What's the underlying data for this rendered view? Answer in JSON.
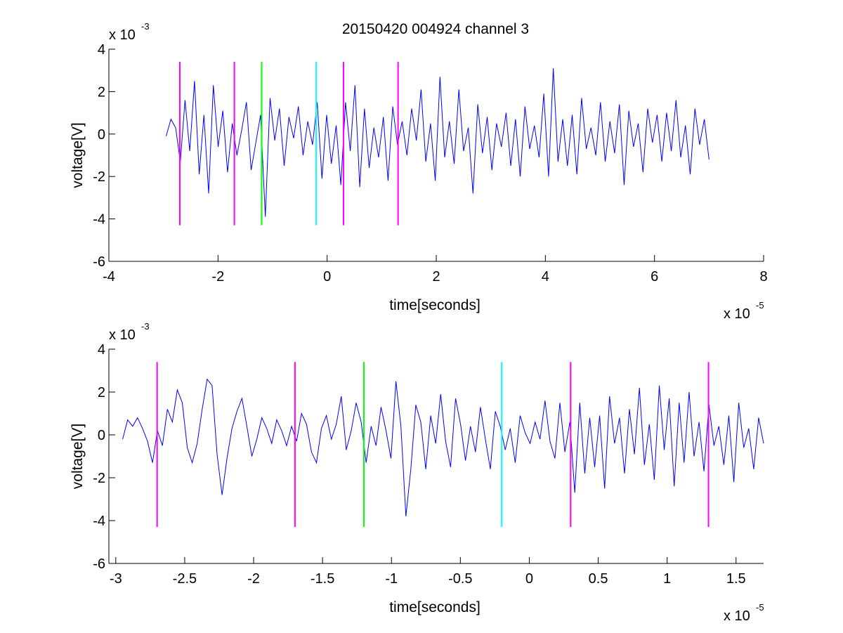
{
  "figure_title": "20150420 004924 channel 3",
  "colors": {
    "signal": "#0000ff",
    "magenta": "#ff00ff",
    "green": "#00ff00",
    "cyan": "#00ffff",
    "axes": "#000000"
  },
  "chart_data": [
    {
      "type": "line",
      "title": "20150420 004924 channel 3",
      "xlabel": "time[seconds]",
      "ylabel": "voltage[V]",
      "x_scale_base": "x 10",
      "x_scale_exp": "-5",
      "y_scale_base": "x 10",
      "y_scale_exp": "-3",
      "xlim": [
        -4,
        8
      ],
      "ylim": [
        -6,
        4
      ],
      "xticks": [
        -4,
        -2,
        0,
        2,
        4,
        6,
        8
      ],
      "xtick_labels": [
        "-4",
        "-2",
        "0",
        "2",
        "4",
        "6",
        "8"
      ],
      "yticks": [
        -6,
        -4,
        -2,
        0,
        2,
        4
      ],
      "ytick_labels": [
        "-6",
        "-4",
        "-2",
        "0",
        "2",
        "4"
      ],
      "grid": false,
      "series": [
        {
          "color": "#0000ff",
          "x_start": -2.95,
          "x_end": 7.0,
          "samples": [
            -0.1,
            0.7,
            0.3,
            -1.3,
            1.6,
            -0.8,
            2.5,
            -1.9,
            0.9,
            -2.8,
            2.3,
            -0.6,
            1.1,
            -1.8,
            0.5,
            -1.0,
            0.2,
            1.5,
            -1.7,
            -0.4,
            0.9,
            -3.9,
            1.7,
            -0.3,
            1.2,
            -1.5,
            0.8,
            -0.2,
            1.3,
            -1.0,
            0.6,
            -0.5,
            1.5,
            -2.1,
            0.9,
            -1.4,
            0.4,
            -2.4,
            1.5,
            -0.8,
            2.3,
            -2.5,
            1.2,
            -1.6,
            0.3,
            -1.1,
            0.8,
            -2.2,
            1.3,
            -0.5,
            0.6,
            -1.0,
            1.2,
            -0.3,
            2.1,
            -1.3,
            0.5,
            -2.2,
            2.7,
            -1.1,
            0.6,
            -1.4,
            2.1,
            -0.8,
            0.3,
            -2.8,
            1.4,
            -0.9,
            0.8,
            -1.7,
            0.5,
            -0.6,
            1.0,
            -1.5,
            0.7,
            -2.0,
            1.3,
            -0.7,
            0.4,
            -1.1,
            1.9,
            -2.0,
            3.1,
            -1.3,
            0.7,
            -1.5,
            0.9,
            -1.9,
            1.7,
            -0.7,
            0.3,
            -1.0,
            1.5,
            -1.3,
            0.6,
            -0.9,
            1.4,
            -2.4,
            1.1,
            -0.6,
            0.5,
            -1.8,
            1.2,
            -0.4,
            0.9,
            -1.3,
            1.0,
            -0.8,
            1.6,
            -1.1,
            0.4,
            -1.9,
            1.2,
            -0.5,
            0.7,
            -1.2
          ]
        }
      ],
      "markers": [
        {
          "x": -2.7,
          "color": "#ff00ff",
          "y_from": -4.3,
          "y_to": 3.4
        },
        {
          "x": -1.7,
          "color": "#ff00ff",
          "y_from": -4.3,
          "y_to": 3.4
        },
        {
          "x": -1.2,
          "color": "#00ff00",
          "y_from": -4.3,
          "y_to": 3.4
        },
        {
          "x": -0.2,
          "color": "#00ffff",
          "y_from": -4.3,
          "y_to": 3.4
        },
        {
          "x": 0.3,
          "color": "#ff00ff",
          "y_from": -4.3,
          "y_to": 3.4
        },
        {
          "x": 1.3,
          "color": "#ff00ff",
          "y_from": -4.3,
          "y_to": 3.4
        }
      ]
    },
    {
      "type": "line",
      "title": "",
      "xlabel": "time[seconds]",
      "ylabel": "voltage[V]",
      "x_scale_base": "x 10",
      "x_scale_exp": "-5",
      "y_scale_base": "x 10",
      "y_scale_exp": "-3",
      "xlim": [
        -3.05,
        1.7
      ],
      "ylim": [
        -6,
        4
      ],
      "xticks": [
        -3,
        -2.5,
        -2,
        -1.5,
        -1,
        -0.5,
        0,
        0.5,
        1,
        1.5
      ],
      "xtick_labels": [
        "-3",
        "-2.5",
        "-2",
        "-1.5",
        "-1",
        "-0.5",
        "0",
        "0.5",
        "1",
        "1.5"
      ],
      "yticks": [
        -6,
        -4,
        -2,
        0,
        2,
        4
      ],
      "ytick_labels": [
        "-6",
        "-4",
        "-2",
        "0",
        "2",
        "4"
      ],
      "grid": false,
      "series": [
        {
          "color": "#0000ff",
          "x_start": -2.95,
          "x_end": 1.7,
          "samples": [
            -0.2,
            0.7,
            0.4,
            0.8,
            0.3,
            -0.3,
            -1.3,
            0.2,
            -0.5,
            1.2,
            0.6,
            2.1,
            1.5,
            -0.6,
            -1.3,
            -0.4,
            1.2,
            2.6,
            2.3,
            -0.9,
            -2.8,
            -1.1,
            0.3,
            1.1,
            1.7,
            0.4,
            -1.0,
            -0.2,
            0.8,
            0.3,
            -0.4,
            0.7,
            0.2,
            -0.5,
            0.4,
            -0.3,
            1.0,
            0.5,
            -0.8,
            -1.3,
            0.3,
            0.9,
            -0.2,
            0.5,
            1.8,
            -0.7,
            0.2,
            1.5,
            0.6,
            -1.3,
            0.4,
            -0.5,
            1.3,
            0.2,
            -1.1,
            2.5,
            0.4,
            -3.8,
            -1.6,
            1.4,
            0.6,
            -1.6,
            0.9,
            -0.4,
            1.9,
            -0.3,
            -1.5,
            1.7,
            0.5,
            -1.2,
            0.4,
            -0.8,
            1.3,
            -0.2,
            -1.6,
            1.1,
            0.4,
            -0.7,
            0.3,
            -1.3,
            0.9,
            0.1,
            -0.4,
            0.6,
            -0.2,
            1.6,
            -0.3,
            -1.1,
            1.5,
            -0.8,
            0.6,
            -2.7,
            1.5,
            -1.8,
            0.8,
            -1.5,
            0.9,
            -2.5,
            1.8,
            -0.4,
            0.8,
            -1.8,
            1.2,
            -0.9,
            2.2,
            -1.4,
            0.5,
            -2.1,
            2.3,
            -0.7,
            1.7,
            -2.4,
            1.5,
            -1.3,
            2.0,
            -1.0,
            0.6,
            -1.7,
            1.4,
            -0.5,
            0.4,
            -1.4,
            0.9,
            -2.2,
            1.5,
            -0.6,
            0.3,
            -1.6,
            0.8,
            -0.4
          ]
        }
      ],
      "markers": [
        {
          "x": -2.7,
          "color": "#ff00ff",
          "y_from": -4.3,
          "y_to": 3.4
        },
        {
          "x": -1.7,
          "color": "#ff00ff",
          "y_from": -4.3,
          "y_to": 3.4
        },
        {
          "x": -1.2,
          "color": "#00ff00",
          "y_from": -4.3,
          "y_to": 3.4
        },
        {
          "x": -0.2,
          "color": "#00ffff",
          "y_from": -4.3,
          "y_to": 3.4
        },
        {
          "x": 0.3,
          "color": "#ff00ff",
          "y_from": -4.3,
          "y_to": 3.4
        },
        {
          "x": 1.3,
          "color": "#ff00ff",
          "y_from": -4.3,
          "y_to": 3.4
        }
      ]
    }
  ]
}
